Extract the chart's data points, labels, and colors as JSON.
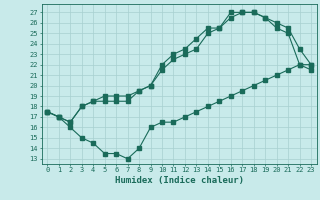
{
  "xlabel": "Humidex (Indice chaleur)",
  "bg_color": "#c8eaea",
  "grid_color": "#a8d0d0",
  "line_color": "#1a6b5a",
  "xlim": [
    -0.5,
    23.5
  ],
  "ylim": [
    12.5,
    27.8
  ],
  "yticks": [
    13,
    14,
    15,
    16,
    17,
    18,
    19,
    20,
    21,
    22,
    23,
    24,
    25,
    26,
    27
  ],
  "xticks": [
    0,
    1,
    2,
    3,
    4,
    5,
    6,
    7,
    8,
    9,
    10,
    11,
    12,
    13,
    14,
    15,
    16,
    17,
    18,
    19,
    20,
    21,
    22,
    23
  ],
  "line1_x": [
    0,
    1,
    2,
    3,
    4,
    5,
    6,
    7,
    8,
    9,
    10,
    11,
    12,
    13,
    14,
    15,
    16,
    17,
    18,
    19,
    20,
    21,
    22,
    23
  ],
  "line1_y": [
    17.5,
    17.0,
    16.5,
    18.0,
    18.5,
    19.0,
    19.0,
    19.0,
    19.5,
    20.0,
    22.0,
    23.0,
    23.5,
    24.5,
    25.5,
    25.5,
    27.0,
    27.0,
    27.0,
    26.5,
    26.0,
    25.5,
    23.5,
    22.0
  ],
  "line2_x": [
    0,
    1,
    2,
    3,
    4,
    5,
    6,
    7,
    8,
    9,
    10,
    11,
    12,
    13,
    14,
    15,
    16,
    17,
    18,
    19,
    20,
    21,
    22,
    23
  ],
  "line2_y": [
    17.5,
    17.0,
    16.5,
    18.0,
    18.5,
    18.5,
    18.5,
    18.5,
    19.5,
    20.0,
    21.5,
    22.5,
    23.0,
    23.5,
    25.0,
    25.5,
    26.5,
    27.0,
    27.0,
    26.5,
    25.5,
    25.0,
    22.0,
    21.5
  ],
  "line3_x": [
    0,
    1,
    2,
    3,
    4,
    5,
    6,
    7,
    8,
    9,
    10,
    11,
    12,
    13,
    14,
    15,
    16,
    17,
    18,
    19,
    20,
    21,
    22,
    23
  ],
  "line3_y": [
    17.5,
    17.0,
    16.0,
    15.0,
    14.5,
    13.5,
    13.5,
    13.0,
    14.0,
    16.0,
    16.5,
    16.5,
    17.0,
    17.5,
    18.0,
    18.5,
    19.0,
    19.5,
    20.0,
    20.5,
    21.0,
    21.5,
    22.0,
    22.0
  ]
}
